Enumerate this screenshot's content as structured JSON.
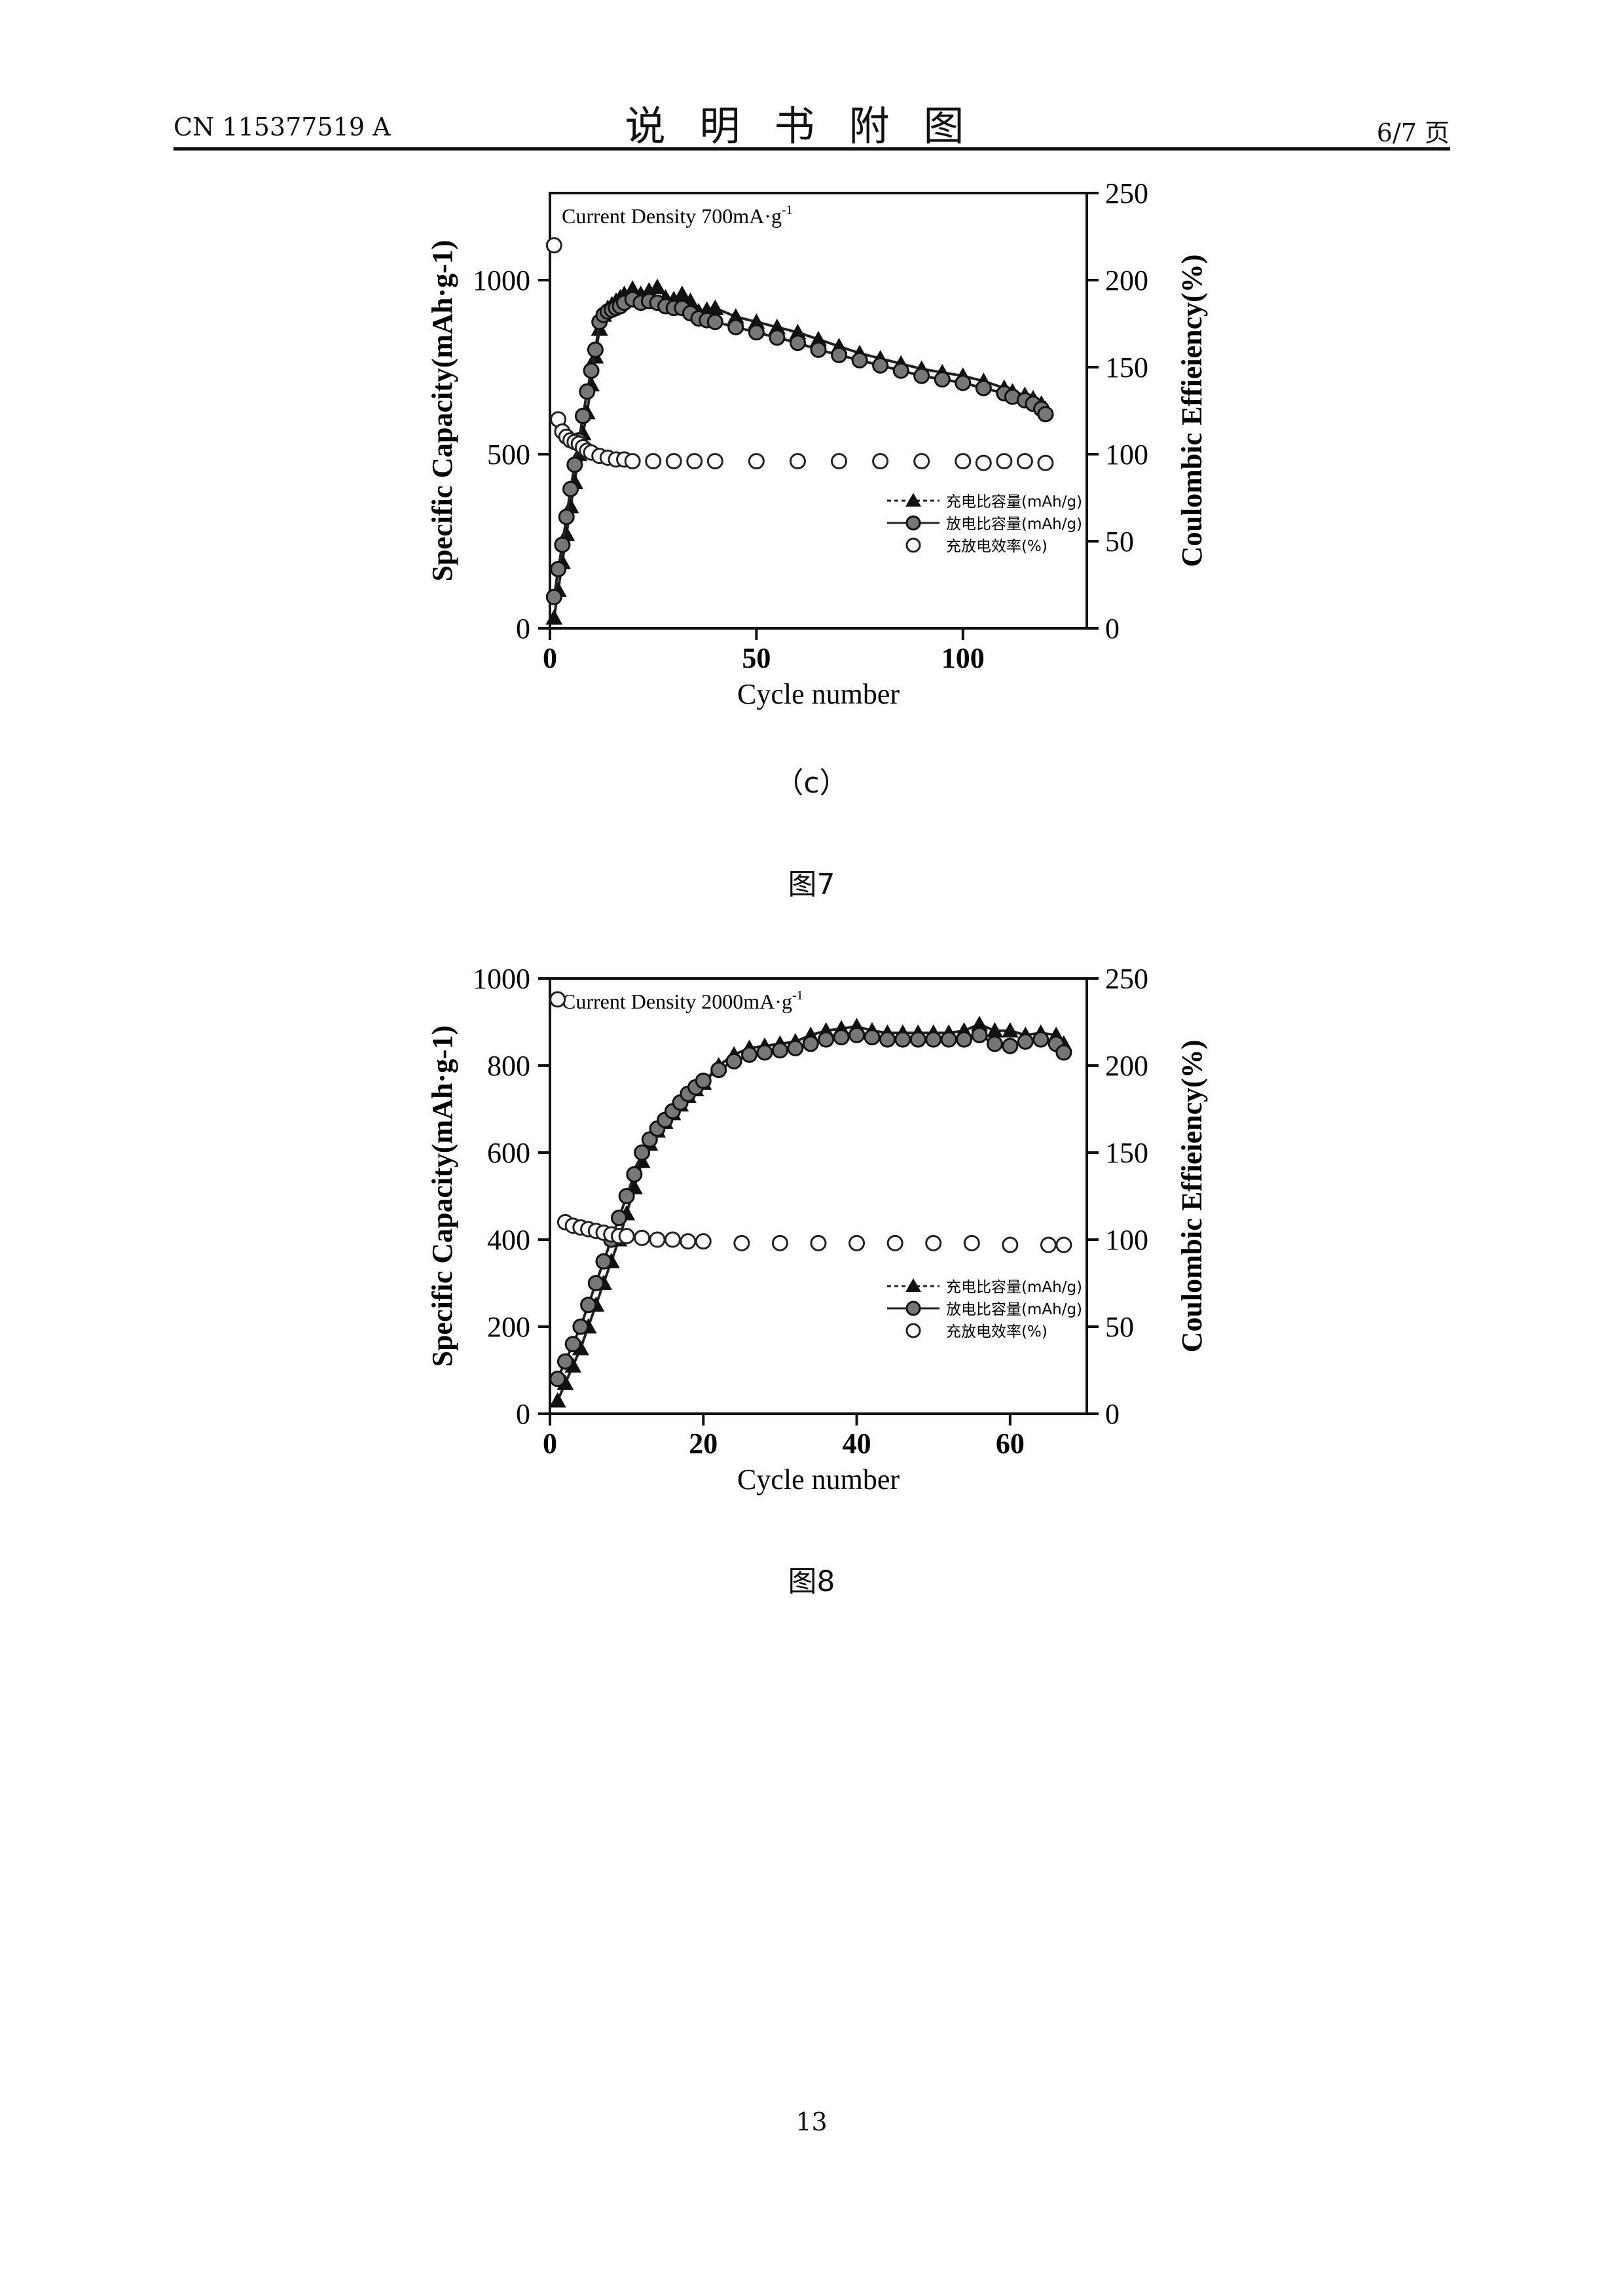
{
  "header": {
    "doc_number": "CN 115377519 A",
    "title": "说明书附图",
    "page_of": "6/7 页"
  },
  "figures": [
    {
      "sub_caption": "（c）",
      "caption": "图7"
    },
    {
      "caption": "图8"
    }
  ],
  "page_number": "13",
  "legend": {
    "charge": "充电比容量(mAh/g)",
    "discharge": "放电比容量(mAh/g)",
    "efficiency": "充放电效率(%)"
  },
  "chart_data": [
    {
      "type": "line",
      "annotation": "Current Density 700mA·g",
      "annotation_sup": "-1",
      "xlabel": "Cycle number",
      "ylabel": "Specific Capacity(mAh·g-1)",
      "y2label": "Coulombic Effieiency(%)",
      "xlim": [
        0,
        130
      ],
      "ylim": [
        0,
        1250
      ],
      "y2lim": [
        0,
        250
      ],
      "xticks": [
        0,
        50,
        100
      ],
      "yticks": [
        0,
        500,
        1000
      ],
      "y2ticks": [
        0,
        50,
        100,
        150,
        200,
        250
      ],
      "legend_position": "lower-right",
      "series": [
        {
          "name": "充电比容量(mAh/g)",
          "axis": "left",
          "marker": "filled-triangle",
          "x": [
            1,
            2,
            3,
            4,
            5,
            6,
            7,
            8,
            9,
            10,
            11,
            12,
            13,
            14,
            15,
            16,
            17,
            18,
            20,
            22,
            24,
            26,
            28,
            30,
            32,
            34,
            36,
            38,
            40,
            45,
            50,
            55,
            60,
            65,
            70,
            75,
            80,
            85,
            90,
            95,
            100,
            105,
            110,
            112,
            115,
            117,
            119,
            120
          ],
          "y": [
            30,
            110,
            190,
            270,
            350,
            420,
            500,
            560,
            620,
            700,
            780,
            860,
            900,
            920,
            930,
            940,
            950,
            960,
            975,
            960,
            970,
            980,
            950,
            945,
            960,
            940,
            910,
            915,
            920,
            895,
            880,
            865,
            850,
            830,
            810,
            790,
            775,
            760,
            745,
            735,
            725,
            710,
            690,
            680,
            670,
            660,
            645,
            630
          ]
        },
        {
          "name": "放电比容量(mAh/g)",
          "axis": "left",
          "marker": "half-filled-circle",
          "x": [
            1,
            2,
            3,
            4,
            5,
            6,
            7,
            8,
            9,
            10,
            11,
            12,
            13,
            14,
            15,
            16,
            17,
            18,
            20,
            22,
            24,
            26,
            28,
            30,
            32,
            34,
            36,
            38,
            40,
            45,
            50,
            55,
            60,
            65,
            70,
            75,
            80,
            85,
            90,
            95,
            100,
            105,
            110,
            112,
            115,
            117,
            119,
            120
          ],
          "y": [
            90,
            170,
            240,
            320,
            400,
            470,
            540,
            610,
            680,
            740,
            800,
            880,
            900,
            910,
            915,
            920,
            925,
            935,
            945,
            935,
            940,
            935,
            925,
            920,
            920,
            905,
            890,
            885,
            880,
            865,
            850,
            835,
            820,
            800,
            785,
            770,
            755,
            740,
            725,
            715,
            705,
            690,
            675,
            665,
            655,
            645,
            630,
            615
          ]
        },
        {
          "name": "充放电效率(%)",
          "axis": "right",
          "marker": "open-circle",
          "x": [
            1,
            2,
            3,
            4,
            5,
            6,
            7,
            8,
            9,
            10,
            12,
            14,
            16,
            18,
            20,
            25,
            30,
            35,
            40,
            50,
            60,
            70,
            80,
            90,
            100,
            105,
            110,
            115,
            120
          ],
          "y": [
            220,
            120,
            113,
            110,
            108,
            107,
            106,
            104,
            102,
            101,
            99,
            98,
            97,
            97,
            96,
            96,
            96,
            96,
            96,
            96,
            96,
            96,
            96,
            96,
            96,
            95,
            96,
            96,
            95
          ]
        }
      ]
    },
    {
      "type": "line",
      "annotation": "Current Density 2000mA·g",
      "annotation_sup": "-1",
      "xlabel": "Cycle number",
      "ylabel": "Specific Capacity(mAh·g-1)",
      "y2label": "Coulombic Effieiency(%)",
      "xlim": [
        0,
        70
      ],
      "ylim": [
        0,
        1000
      ],
      "y2lim": [
        0,
        250
      ],
      "xticks": [
        0,
        20,
        40,
        60
      ],
      "yticks": [
        0,
        200,
        400,
        600,
        800,
        1000
      ],
      "y2ticks": [
        0,
        50,
        100,
        150,
        200,
        250
      ],
      "legend_position": "lower-right",
      "series": [
        {
          "name": "充电比容量(mAh/g)",
          "axis": "left",
          "marker": "filled-triangle",
          "x": [
            1,
            2,
            3,
            4,
            5,
            6,
            7,
            8,
            9,
            10,
            11,
            12,
            13,
            14,
            15,
            16,
            17,
            18,
            19,
            20,
            22,
            24,
            26,
            28,
            30,
            32,
            34,
            36,
            38,
            40,
            42,
            44,
            46,
            48,
            50,
            52,
            54,
            56,
            58,
            60,
            62,
            64,
            66,
            67
          ],
          "y": [
            30,
            70,
            110,
            150,
            200,
            250,
            300,
            350,
            400,
            460,
            520,
            580,
            620,
            650,
            670,
            690,
            710,
            730,
            745,
            760,
            800,
            825,
            840,
            845,
            850,
            855,
            870,
            880,
            885,
            890,
            880,
            875,
            875,
            875,
            875,
            875,
            880,
            895,
            880,
            880,
            870,
            875,
            870,
            850
          ]
        },
        {
          "name": "放电比容量(mAh/g)",
          "axis": "left",
          "marker": "half-filled-circle",
          "x": [
            1,
            2,
            3,
            4,
            5,
            6,
            7,
            8,
            9,
            10,
            11,
            12,
            13,
            14,
            15,
            16,
            17,
            18,
            19,
            20,
            22,
            24,
            26,
            28,
            30,
            32,
            34,
            36,
            38,
            40,
            42,
            44,
            46,
            48,
            50,
            52,
            54,
            56,
            58,
            60,
            62,
            64,
            66,
            67
          ],
          "y": [
            80,
            120,
            160,
            200,
            250,
            300,
            350,
            400,
            450,
            500,
            550,
            600,
            630,
            655,
            675,
            695,
            715,
            735,
            750,
            765,
            790,
            810,
            825,
            830,
            835,
            840,
            850,
            860,
            865,
            870,
            865,
            860,
            860,
            860,
            860,
            860,
            860,
            870,
            850,
            845,
            855,
            860,
            850,
            830
          ]
        },
        {
          "name": "充放电效率(%)",
          "axis": "right",
          "marker": "open-circle",
          "x": [
            1,
            2,
            3,
            4,
            5,
            6,
            7,
            8,
            9,
            10,
            12,
            14,
            16,
            18,
            20,
            25,
            30,
            35,
            40,
            45,
            50,
            55,
            60,
            65,
            67
          ],
          "y": [
            238,
            110,
            108,
            107,
            106,
            105,
            104,
            103,
            102,
            102,
            101,
            100,
            100,
            99,
            99,
            98,
            98,
            98,
            98,
            98,
            98,
            98,
            97,
            97,
            97
          ]
        }
      ]
    }
  ]
}
